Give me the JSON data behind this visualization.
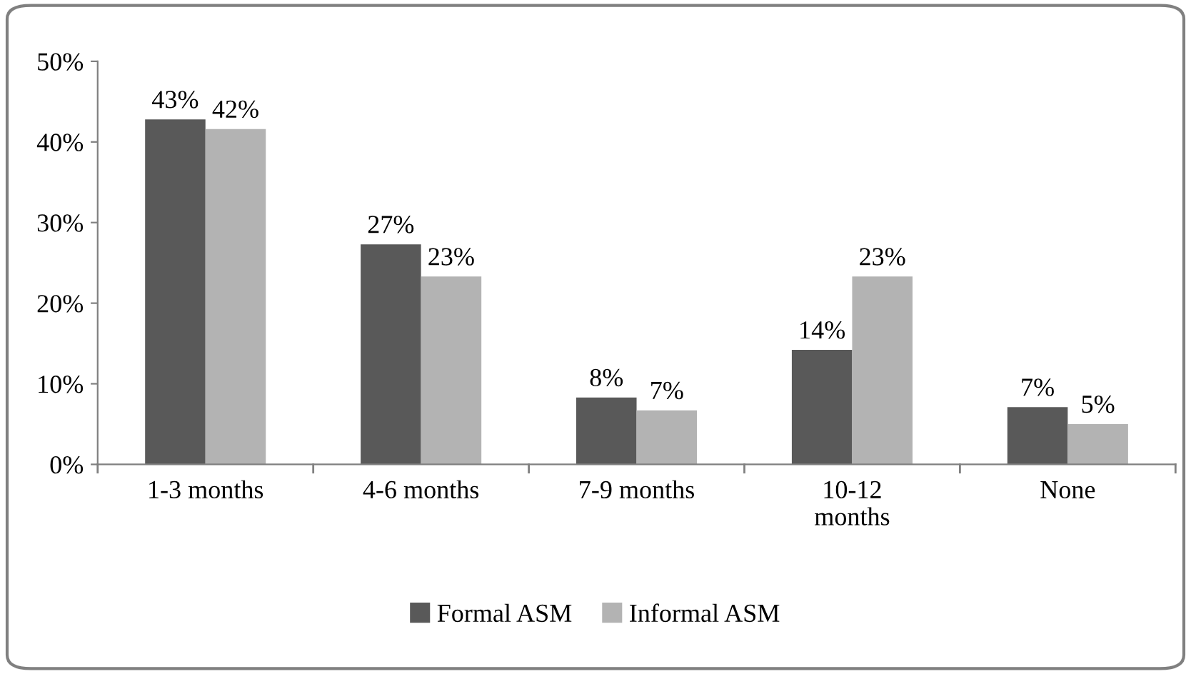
{
  "chart_data": {
    "type": "bar",
    "categories": [
      "1-3 months",
      "4-6 months",
      "7-9 months",
      "10-12\nmonths",
      "None"
    ],
    "series": [
      {
        "name": "Formal ASM",
        "color": "#595959",
        "values": [
          42.8,
          27.3,
          8.3,
          14.2,
          7.1
        ],
        "value_labels": [
          "43%",
          "27%",
          "8%",
          "14%",
          "7%"
        ]
      },
      {
        "name": "Informal ASM",
        "color": "#b3b3b3",
        "values": [
          41.6,
          23.3,
          6.7,
          23.3,
          5.0
        ],
        "value_labels": [
          "42%",
          "23%",
          "7%",
          "23%",
          "5%"
        ]
      }
    ],
    "ylim": [
      0,
      50
    ],
    "yticks": [
      {
        "value": 0,
        "label": "0%"
      },
      {
        "value": 10,
        "label": "10%"
      },
      {
        "value": 20,
        "label": "20%"
      },
      {
        "value": 30,
        "label": "30%"
      },
      {
        "value": 40,
        "label": "40%"
      },
      {
        "value": 50,
        "label": "50%"
      }
    ],
    "grid": false,
    "legend": "bottom"
  }
}
